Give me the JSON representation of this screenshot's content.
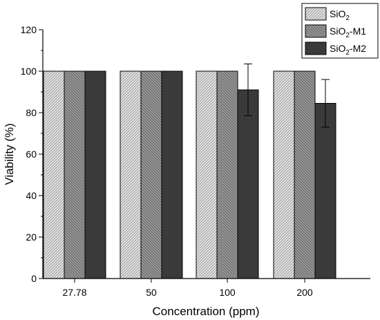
{
  "chart_data": {
    "type": "bar",
    "xlabel": "Concentration (ppm)",
    "ylabel": "Viability (%)",
    "ylim": [
      0,
      120
    ],
    "yticks": [
      0,
      20,
      40,
      60,
      80,
      100,
      120
    ],
    "categories": [
      "27.78",
      "50",
      "100",
      "200"
    ],
    "series": [
      {
        "name": "SiO₂",
        "legend_main": "SiO",
        "legend_sub": "2",
        "legend_suffix": "",
        "pattern": "light-hatch",
        "values": [
          100,
          100,
          100,
          100
        ],
        "errors": [
          null,
          null,
          null,
          null
        ]
      },
      {
        "name": "SiO₂-M1",
        "legend_main": "SiO",
        "legend_sub": "2",
        "legend_suffix": "-M1",
        "pattern": "medium-hatch",
        "values": [
          100,
          100,
          100,
          100
        ],
        "errors": [
          null,
          null,
          null,
          null
        ]
      },
      {
        "name": "SiO₂-M2",
        "legend_main": "SiO",
        "legend_sub": "2",
        "legend_suffix": "-M2",
        "pattern": "solid-dark",
        "values": [
          100,
          100,
          91,
          84.5
        ],
        "errors": [
          null,
          null,
          12.5,
          11.5
        ]
      }
    ],
    "grid": false,
    "legend_position": "top-right",
    "colors": {
      "light_hatch_bg": "#e6e6e6",
      "light_hatch_line": "#8c8c8c",
      "medium_hatch_bg": "#9a9a9a",
      "medium_hatch_line": "#5a5a5a",
      "solid_dark": "#3a3a3a",
      "axis": "#000000"
    }
  }
}
